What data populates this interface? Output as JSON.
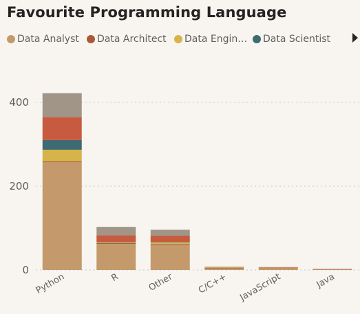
{
  "title": "Favourite Programming Language",
  "legend": {
    "items": [
      {
        "label": "Data Analyst",
        "color": "#c49a6c"
      },
      {
        "label": "Data Architect",
        "color": "#a8593a"
      },
      {
        "label": "Data Engin…",
        "color": "#d6b44a"
      },
      {
        "label": "Data Scientist",
        "color": "#3e6a72"
      }
    ],
    "next_icon": "chevron-right-icon"
  },
  "chart_data": {
    "type": "bar",
    "stacked": true,
    "title": "Favourite Programming Language",
    "xlabel": "",
    "ylabel": "",
    "categories": [
      "Python",
      "R",
      "Other",
      "C/C++",
      "JavaScript",
      "Java"
    ],
    "y_ticks": [
      0,
      200,
      400
    ],
    "ylim": [
      0,
      450
    ],
    "grid": true,
    "legend_position": "top-left",
    "series": [
      {
        "name": "Data Analyst",
        "color": "#c49a6c",
        "values": [
          257,
          62,
          60,
          4,
          3,
          1
        ]
      },
      {
        "name": "Data Architect",
        "color": "#a8593a",
        "values": [
          2,
          2,
          2,
          1,
          1,
          0
        ]
      },
      {
        "name": "Data Engin…",
        "color": "#d6b44a",
        "values": [
          28,
          2,
          4,
          1,
          1,
          0
        ]
      },
      {
        "name": "Data Scientist",
        "color": "#3e6a72",
        "values": [
          23,
          1,
          1,
          0,
          0,
          0
        ]
      },
      {
        "color": "#c75b3f",
        "values": [
          55,
          16,
          15,
          1,
          1,
          1
        ]
      },
      {
        "color": "#a09586",
        "values": [
          57,
          20,
          14,
          1,
          1,
          1
        ]
      }
    ]
  }
}
